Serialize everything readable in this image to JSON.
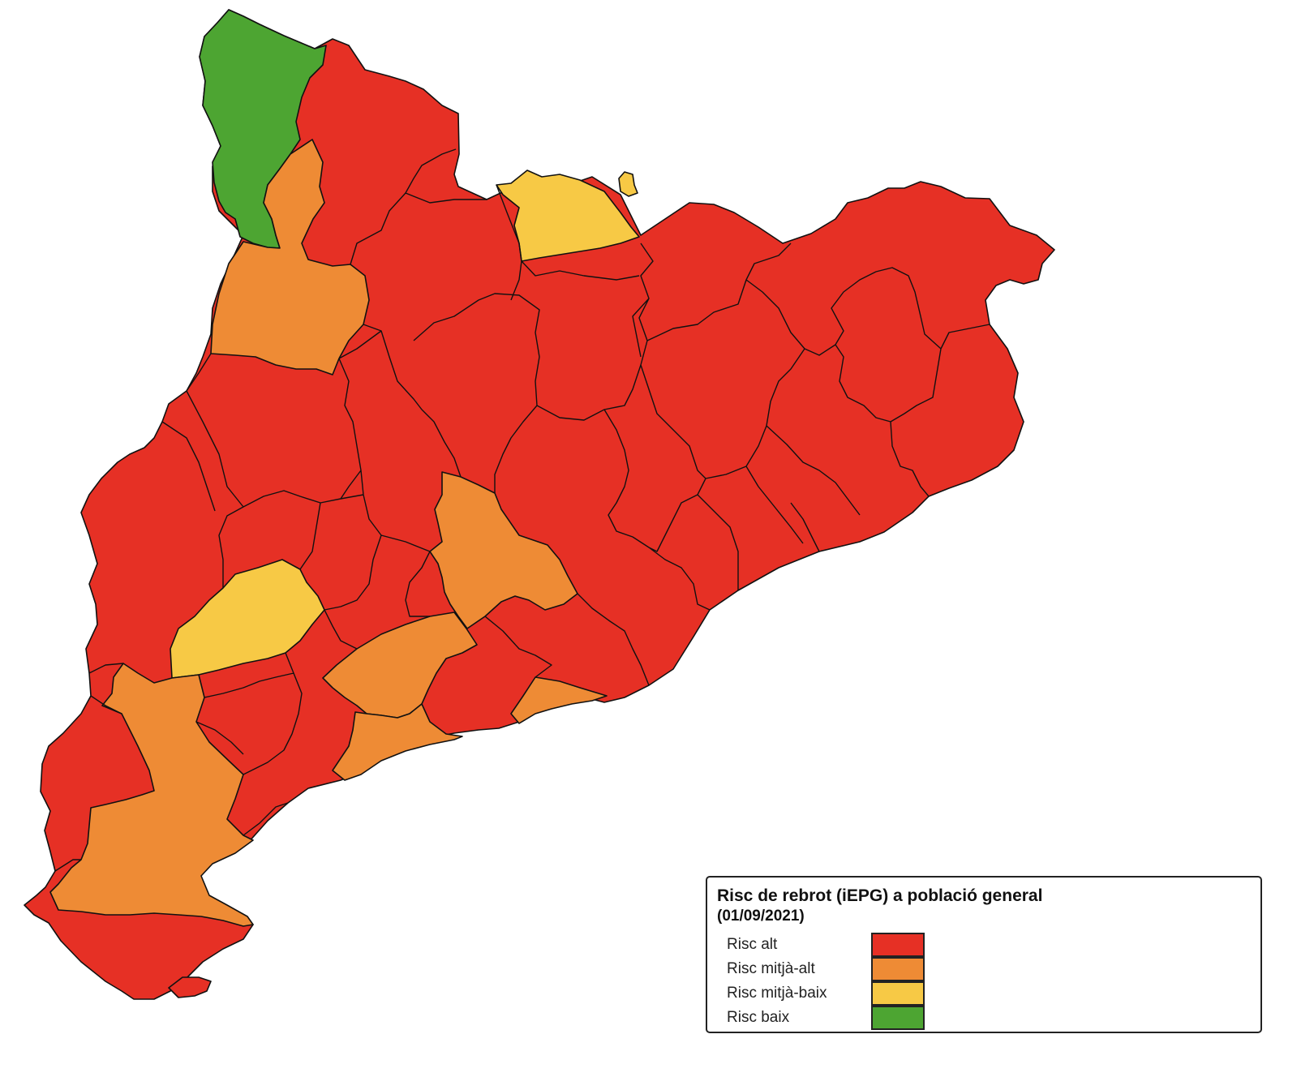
{
  "legend": {
    "title": "Risc de rebrot (iEPG) a població general",
    "date": "(01/09/2021)",
    "items": [
      {
        "label": "Risc alt",
        "color": "#e63025"
      },
      {
        "label": "Risc mitjà-alt",
        "color": "#ee8b35"
      },
      {
        "label": "Risc mitjà-baix",
        "color": "#f7c945"
      },
      {
        "label": "Risc baix",
        "color": "#4da532"
      }
    ]
  }
}
